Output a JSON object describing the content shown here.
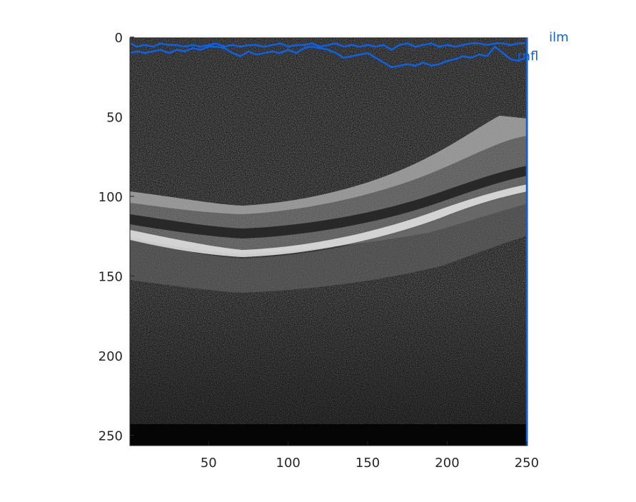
{
  "chart_data": {
    "type": "line",
    "title": "",
    "xlabel": "",
    "ylabel": "",
    "image": "grayscale OCT B-scan",
    "xlim": [
      0.5,
      250.5
    ],
    "ylim": [
      256.5,
      0.5
    ],
    "y_direction": "reversed",
    "grid": false,
    "xticks": [
      50,
      100,
      150,
      200,
      250
    ],
    "yticks": [
      0,
      50,
      100,
      150,
      200,
      250
    ],
    "xtick_labels": [
      "50",
      "100",
      "150",
      "200",
      "250"
    ],
    "ytick_labels": [
      "0",
      "50",
      "100",
      "150",
      "200",
      "250"
    ],
    "series": [
      {
        "name": "ilm",
        "color": "#0a62e8",
        "x": [
          1,
          5,
          10,
          15,
          20,
          25,
          30,
          35,
          40,
          45,
          50,
          55,
          60,
          65,
          70,
          75,
          80,
          85,
          90,
          95,
          100,
          105,
          110,
          115,
          120,
          125,
          130,
          135,
          140,
          145,
          150,
          155,
          160,
          165,
          170,
          175,
          180,
          185,
          190,
          195,
          200,
          205,
          210,
          215,
          220,
          225,
          230,
          235,
          240,
          245,
          249
        ],
        "y": [
          4,
          6,
          5,
          6,
          4,
          5,
          5,
          6,
          5,
          6,
          5,
          4,
          6,
          5,
          6,
          5,
          5,
          6,
          5,
          4,
          6,
          5,
          5,
          4,
          6,
          5,
          4,
          6,
          5,
          6,
          5,
          6,
          5,
          8,
          5,
          4,
          6,
          5,
          4,
          6,
          5,
          6,
          5,
          4,
          4,
          5,
          4,
          4,
          5,
          4,
          4
        ]
      },
      {
        "name": "rnfl",
        "color": "#0a62e8",
        "x": [
          1,
          5,
          10,
          15,
          20,
          25,
          30,
          35,
          40,
          45,
          50,
          55,
          60,
          65,
          70,
          75,
          80,
          85,
          90,
          95,
          100,
          105,
          110,
          115,
          120,
          125,
          130,
          135,
          140,
          145,
          150,
          155,
          160,
          165,
          170,
          175,
          180,
          185,
          190,
          195,
          200,
          205,
          210,
          215,
          220,
          225,
          230,
          235,
          240,
          245,
          249
        ],
        "y": [
          10,
          9,
          10,
          9,
          8,
          10,
          8,
          9,
          7,
          8,
          6,
          6,
          7,
          10,
          12,
          9,
          11,
          10,
          9,
          10,
          8,
          10,
          7,
          6,
          7,
          8,
          10,
          13,
          12,
          11,
          10,
          13,
          16,
          19,
          18,
          17,
          18,
          16,
          18,
          17,
          15,
          14,
          12,
          13,
          11,
          12,
          6,
          10,
          14,
          15,
          13
        ]
      }
    ],
    "series_labels": [
      {
        "text": "ilm",
        "x": 264,
        "y": 0
      },
      {
        "text": "rnfl",
        "x": 244,
        "y": 12
      }
    ],
    "annotation": "vertical edge line at right image boundary (x = 249.5)"
  }
}
